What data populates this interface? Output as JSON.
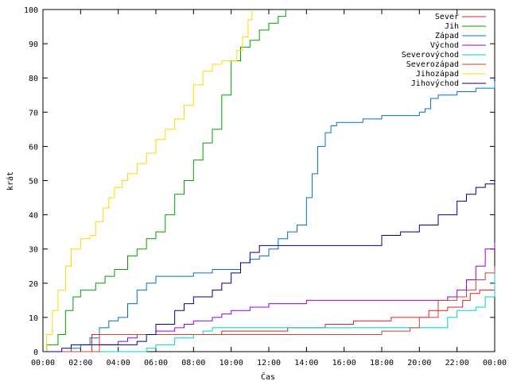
{
  "chart_data": {
    "type": "line",
    "xlabel": "Čas",
    "ylabel": "krát",
    "xlim": [
      0,
      24
    ],
    "ylim": [
      0,
      100
    ],
    "x_ticks": [
      {
        "v": 0,
        "label": "00:00"
      },
      {
        "v": 2,
        "label": "02:00"
      },
      {
        "v": 4,
        "label": "04:00"
      },
      {
        "v": 6,
        "label": "06:00"
      },
      {
        "v": 8,
        "label": "08:00"
      },
      {
        "v": 10,
        "label": "10:00"
      },
      {
        "v": 12,
        "label": "12:00"
      },
      {
        "v": 14,
        "label": "14:00"
      },
      {
        "v": 16,
        "label": "16:00"
      },
      {
        "v": 18,
        "label": "18:00"
      },
      {
        "v": 20,
        "label": "20:00"
      },
      {
        "v": 22,
        "label": "22:00"
      },
      {
        "v": 24,
        "label": "00:00"
      }
    ],
    "y_ticks": [
      0,
      10,
      20,
      30,
      40,
      50,
      60,
      70,
      80,
      90,
      100
    ],
    "grid": false,
    "legend_position": "top-right",
    "series": [
      {
        "name": "Sever",
        "color": "#e41a1c",
        "x": [
          0,
          2.5,
          2.6,
          8.5,
          9.5,
          10.5,
          13,
          15,
          16.5,
          18.5,
          20.5,
          21,
          21.5,
          22.3,
          22.7,
          23.2,
          23.6,
          24
        ],
        "y": [
          0,
          0,
          5,
          5,
          6,
          6,
          7,
          8,
          9,
          10,
          12,
          12,
          13,
          15,
          17,
          18,
          18,
          18
        ]
      },
      {
        "name": "Jih",
        "color": "#00a000",
        "x": [
          0,
          0.2,
          0.8,
          1.2,
          1.6,
          2.0,
          2.8,
          3.3,
          3.8,
          4.5,
          5.0,
          5.5,
          6.0,
          6.5,
          7.0,
          7.5,
          8.0,
          8.5,
          9.0,
          9.5,
          10.0,
          10.5,
          11.0,
          11.5,
          12.0,
          12.5,
          12.9
        ],
        "y": [
          0,
          2,
          5,
          12,
          16,
          18,
          20,
          22,
          24,
          28,
          30,
          33,
          35,
          40,
          46,
          50,
          56,
          61,
          65,
          75,
          85,
          89,
          91,
          94,
          96,
          98,
          100
        ]
      },
      {
        "name": "Západ",
        "color": "#0072bd",
        "x": [
          0,
          1.0,
          1.5,
          2.0,
          2.5,
          3.0,
          3.5,
          4.0,
          4.5,
          5.0,
          5.5,
          6.0,
          6.5,
          7.0,
          8.0,
          9.0,
          10.0,
          10.5,
          11.0,
          11.5,
          12.0,
          12.5,
          13.0,
          13.5,
          14.0,
          14.3,
          14.6,
          15.0,
          15.3,
          15.6,
          16.0,
          17.0,
          18.0,
          19.0,
          20.0,
          20.3,
          20.6,
          21.0,
          22.0,
          23.0,
          24.0
        ],
        "y": [
          0,
          0,
          1,
          2,
          4,
          7,
          9,
          10,
          14,
          18,
          20,
          22,
          22,
          22,
          23,
          24,
          24,
          26,
          27,
          28,
          30,
          33,
          35,
          37,
          45,
          52,
          60,
          64,
          66,
          67,
          67,
          68,
          69,
          69,
          70,
          71,
          74,
          75,
          76,
          77,
          79
        ]
      },
      {
        "name": "Východ",
        "color": "#9400d3",
        "x": [
          0,
          2.5,
          3.0,
          4.0,
          4.5,
          5.0,
          6.0,
          7.0,
          7.5,
          8.0,
          9.0,
          9.5,
          10.0,
          10.5,
          11.0,
          11.5,
          12.0,
          13.0,
          14.0,
          15.0,
          16.0,
          17.0,
          18.0,
          19.0,
          20.0,
          21.0,
          21.5,
          22.0,
          22.5,
          23.0,
          23.5,
          24.0
        ],
        "y": [
          0,
          0,
          2,
          3,
          4,
          5,
          6,
          7,
          8,
          9,
          10,
          11,
          12,
          12,
          13,
          13,
          14,
          14,
          15,
          15,
          15,
          15,
          15,
          15,
          15,
          15,
          16,
          18,
          21,
          25,
          30,
          32
        ]
      },
      {
        "name": "Severovýchod",
        "color": "#00ced1",
        "x": [
          0,
          5,
          5.5,
          6.0,
          7.0,
          8.0,
          8.5,
          9.0,
          10.0,
          11.0,
          12.0,
          13.0,
          14.0,
          15.0,
          16.0,
          17.0,
          18.0,
          19.0,
          20.0,
          21.0,
          21.5,
          22.0,
          23.0,
          23.5,
          24.0
        ],
        "y": [
          0,
          0,
          1,
          2,
          4,
          5,
          6,
          7,
          7,
          7,
          7,
          7,
          7,
          7,
          7,
          7,
          7,
          7,
          7,
          7,
          10,
          12,
          13,
          16,
          24
        ]
      },
      {
        "name": "Severozápad",
        "color": "#c8442e",
        "x": [
          0,
          2.8,
          3.0,
          6.0,
          8.0,
          10.0,
          12.0,
          14.0,
          16.0,
          18.0,
          19.5,
          20.0,
          21.0,
          22.0,
          22.5,
          23.0,
          23.5,
          24.0
        ],
        "y": [
          0,
          0,
          5,
          5,
          5,
          5,
          5,
          5,
          5,
          6,
          7,
          10,
          15,
          16,
          18,
          21,
          23,
          25
        ]
      },
      {
        "name": "Jihozápad",
        "color": "#ffd700",
        "x": [
          0,
          0.2,
          0.5,
          0.8,
          1.2,
          1.5,
          2.0,
          2.5,
          2.8,
          3.2,
          3.5,
          3.8,
          4.2,
          4.5,
          5.0,
          5.5,
          6.0,
          6.5,
          7.0,
          7.5,
          8.0,
          8.5,
          9.0,
          9.5,
          10.0,
          10.3,
          10.6,
          10.9,
          11.1
        ],
        "y": [
          0,
          5,
          12,
          18,
          25,
          30,
          33,
          34,
          38,
          42,
          45,
          48,
          50,
          52,
          55,
          58,
          62,
          65,
          68,
          72,
          78,
          82,
          84,
          85,
          85,
          88,
          92,
          97,
          100
        ]
      },
      {
        "name": "Jihovýchod",
        "color": "#000080",
        "x": [
          0,
          1.0,
          1.5,
          2.0,
          3.0,
          4.0,
          5.0,
          5.5,
          6.0,
          7.0,
          7.5,
          8.0,
          9.0,
          9.5,
          10.0,
          10.5,
          11.0,
          11.5,
          12.0,
          13.0,
          14.0,
          15.0,
          16.0,
          17.0,
          18.0,
          19.0,
          20.0,
          21.0,
          22.0,
          22.5,
          23.0,
          23.5,
          24.0
        ],
        "y": [
          0,
          1,
          2,
          2,
          2,
          2,
          3,
          5,
          8,
          12,
          14,
          16,
          18,
          20,
          23,
          26,
          29,
          31,
          31,
          31,
          31,
          31,
          31,
          31,
          34,
          35,
          37,
          40,
          44,
          46,
          48,
          49,
          49
        ]
      }
    ]
  }
}
